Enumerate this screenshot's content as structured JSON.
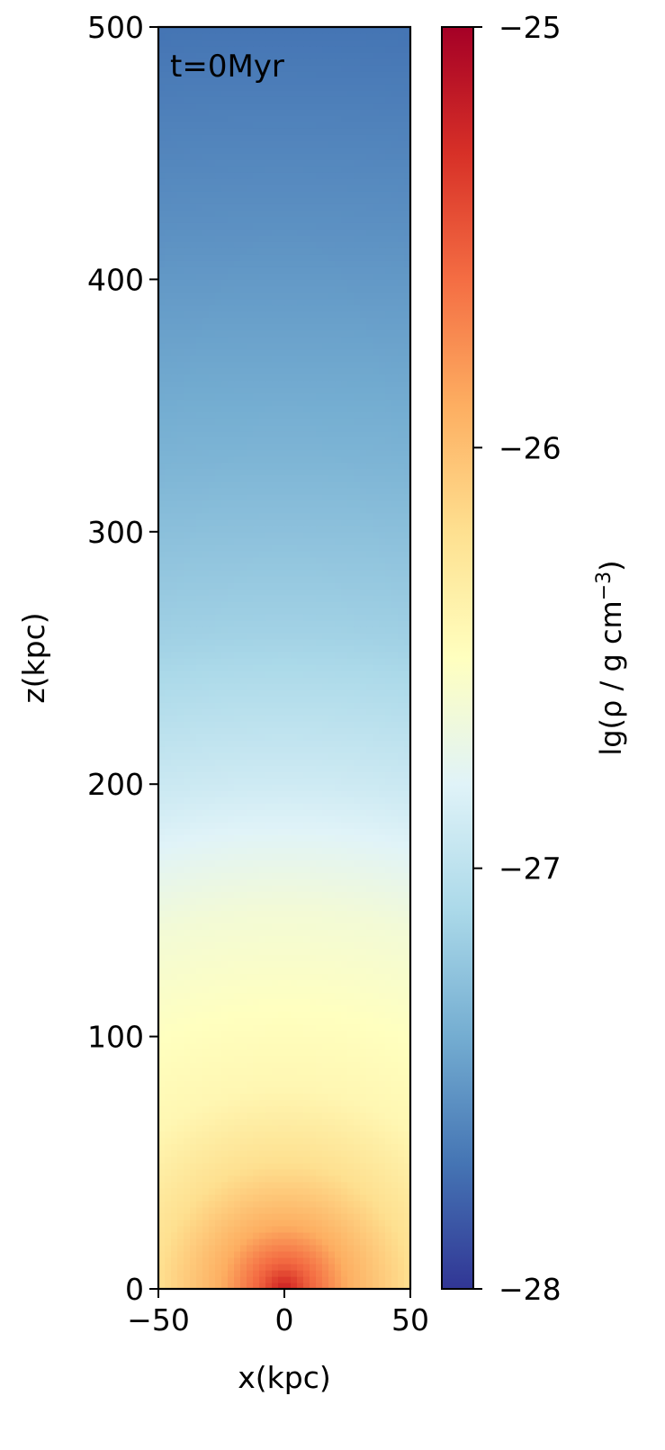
{
  "chart_data": {
    "type": "heatmap",
    "annotation": "t=0Myr",
    "xlabel": "x(kpc)",
    "ylabel": "z(kpc)",
    "xlim": [
      -50,
      50
    ],
    "ylim": [
      0,
      500
    ],
    "xticks": [
      -50,
      0,
      50
    ],
    "xtick_labels": [
      "−50",
      "0",
      "50"
    ],
    "yticks": [
      0,
      100,
      200,
      300,
      400,
      500
    ],
    "ytick_labels": [
      "0",
      "100",
      "200",
      "300",
      "400",
      "500"
    ],
    "field": {
      "name": "lg density",
      "center_x": 0,
      "center_z": 0,
      "samples_r_kpc": [
        0,
        10,
        25,
        50,
        80,
        110,
        150,
        200,
        260,
        330,
        420,
        500
      ],
      "samples_value": [
        -25.2,
        -25.55,
        -25.9,
        -26.2,
        -26.42,
        -26.5,
        -26.62,
        -26.9,
        -27.15,
        -27.35,
        -27.55,
        -27.7
      ]
    },
    "colorbar": {
      "colormap": "RdYlBu_r",
      "label": "lg(ρ / g cm⁻³)",
      "label_main": "lg(ρ / g cm",
      "label_sup": "−3",
      "label_close": ")",
      "range": [
        -28,
        -25
      ],
      "ticks": [
        -25,
        -26,
        -27,
        -28
      ],
      "tick_labels": [
        "−25",
        "−26",
        "−27",
        "−28"
      ],
      "stops": [
        "#313695",
        "#4575b4",
        "#74add1",
        "#abd9e9",
        "#e0f3f8",
        "#ffffbf",
        "#fee090",
        "#fdae61",
        "#f46d43",
        "#d73027",
        "#a50026"
      ]
    }
  }
}
